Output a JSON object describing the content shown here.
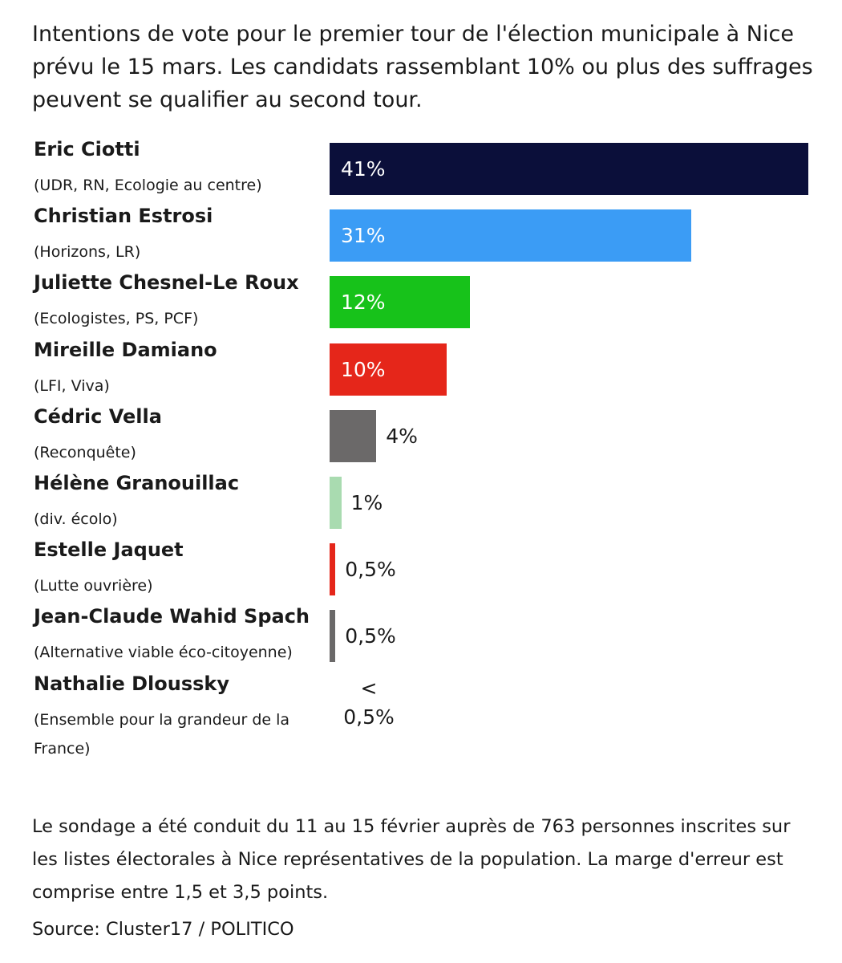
{
  "chart_data": {
    "type": "bar",
    "title": "Intentions de vote pour le premier tour de l'élection municipale à Nice prévu le 15 mars. Les candidats rassemblant 10% ou plus des suffrages peuvent se qualifier au second tour.",
    "categories": [
      "Eric Ciotti",
      "Christian Estrosi",
      "Juliette Chesnel-Le Roux",
      "Mireille Damiano",
      "Cédric Vella",
      "Hélène Granouillac",
      "Estelle Jaquet",
      "Jean-Claude Wahid Spach",
      "Nathalie Dloussky"
    ],
    "parties": [
      "(UDR, RN, Ecologie au centre)",
      "(Horizons, LR)",
      "(Ecologistes, PS, PCF)",
      "(LFI, Viva)",
      "(Reconquête)",
      "(div. écolo)",
      "(Lutte ouvrière)",
      "(Alternative viable éco-citoyenne)",
      "(Ensemble pour la grandeur de la France)"
    ],
    "values": [
      41,
      31,
      12,
      10,
      4,
      1,
      0.5,
      0.5,
      null
    ],
    "value_labels": [
      "41%",
      "31%",
      "12%",
      "10%",
      "4%",
      "1%",
      "0,5%",
      "0,5%",
      "< 0,5%"
    ],
    "colors": [
      "#0b0f3a",
      "#3b9cf5",
      "#17c21a",
      "#e5261a",
      "#6b6969",
      "#a9dbb0",
      "#e5261a",
      "#6b6969",
      null
    ],
    "note": "Le sondage a été conduit du 11 au 15 février auprès de 763 personnes inscrites sur les listes électorales à Nice représentatives de la population. La marge d'erreur est comprise entre 1,5 et 3,5 points.",
    "source": "Source: Cluster17 / POLITICO"
  }
}
